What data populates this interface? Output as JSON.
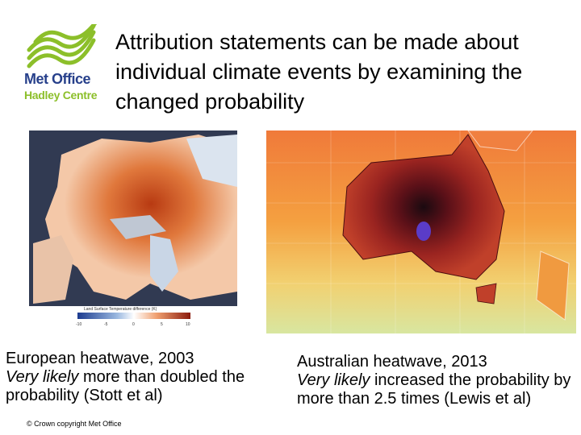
{
  "logo": {
    "line1": "Met Office",
    "line2": "Hadley Centre",
    "wave_color": "#8cbf2a",
    "text_color": "#27408b"
  },
  "title": "Attribution statements can be made about individual climate events by examining the changed probability",
  "europe": {
    "map_label": "Land Surface Temperature difference (K)",
    "scale_ticks": [
      "-10",
      "-5",
      "0",
      "5",
      "10"
    ],
    "caption_line1": "European heatwave, 2003",
    "caption_em": "Very likely",
    "caption_rest": " more than doubled the probability (Stott et al)"
  },
  "australia": {
    "caption_line1": "Australian heatwave, 2013",
    "caption_em": "Very likely",
    "caption_rest": " increased the probability by more than 2.5 times (Lewis et al)"
  },
  "footer": {
    "copyright": "© Crown copyright   Met Office"
  }
}
